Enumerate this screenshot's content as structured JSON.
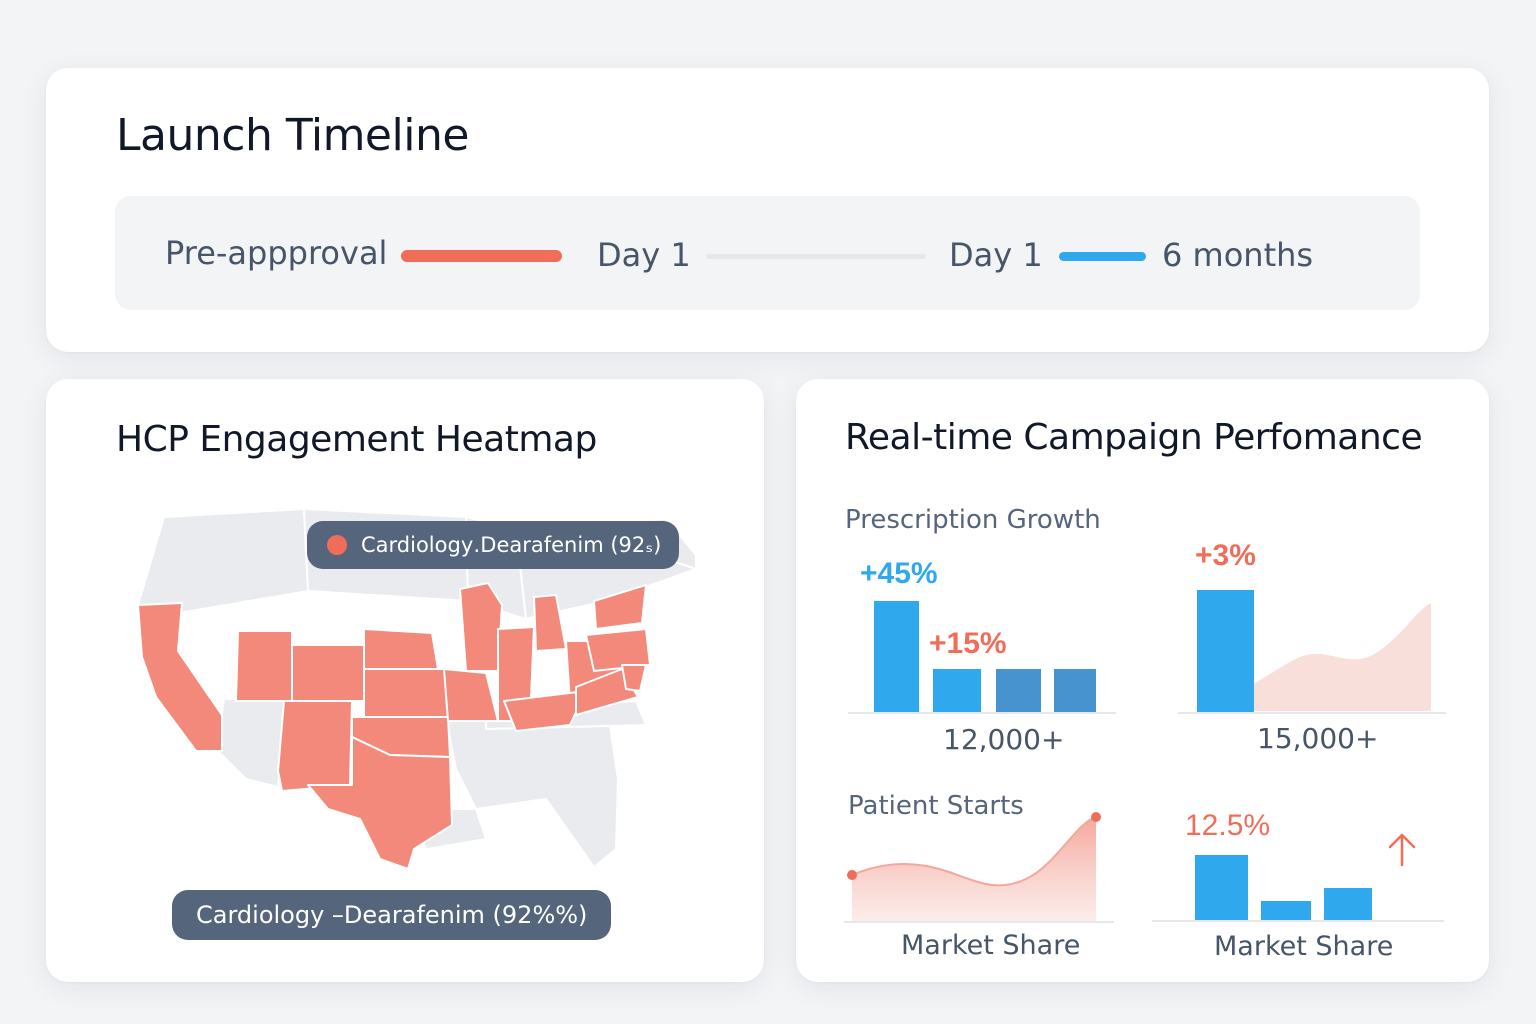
{
  "colors": {
    "accent_red": "#f06d5a",
    "accent_blue": "#2fa8ee",
    "dark_blue": "#4693cf",
    "pill_bg": "#55657b",
    "map_gray": "#e9ebee"
  },
  "timeline": {
    "title": "Launch Timeline",
    "labels": [
      "Pre-appproval",
      "Day 1",
      "Day 1",
      "6 months"
    ]
  },
  "heatmap": {
    "title": "HCP Engagement Heatmap",
    "tooltip_top": "Cardiology․Dearafenim (92ₛ)",
    "tooltip_bottom": "Cardiology –Dearafenim (92%%)",
    "highlighted_color": "#f2897a",
    "base_color": "#e9ebee"
  },
  "campaign": {
    "title": "Real-time Campaign Perfomance",
    "prescription_growth": {
      "label": "Prescription Growth",
      "pct_main": "+45%",
      "pct_secondary": "+15%",
      "total": "12,000+",
      "bar_values": [
        1.0,
        0.38,
        0.38,
        0.38
      ]
    },
    "growth_right": {
      "pct": "+3%",
      "total": "15,000+",
      "bar_value": 1.0
    },
    "patient_starts": {
      "label": "Patient Starts",
      "axis_label": "Market Share"
    },
    "market_share": {
      "pct": "12.5%",
      "axis_label": "Market Share",
      "arrow": "up-arrow-icon",
      "bar_values": [
        1.0,
        0.28,
        0.48
      ]
    }
  }
}
